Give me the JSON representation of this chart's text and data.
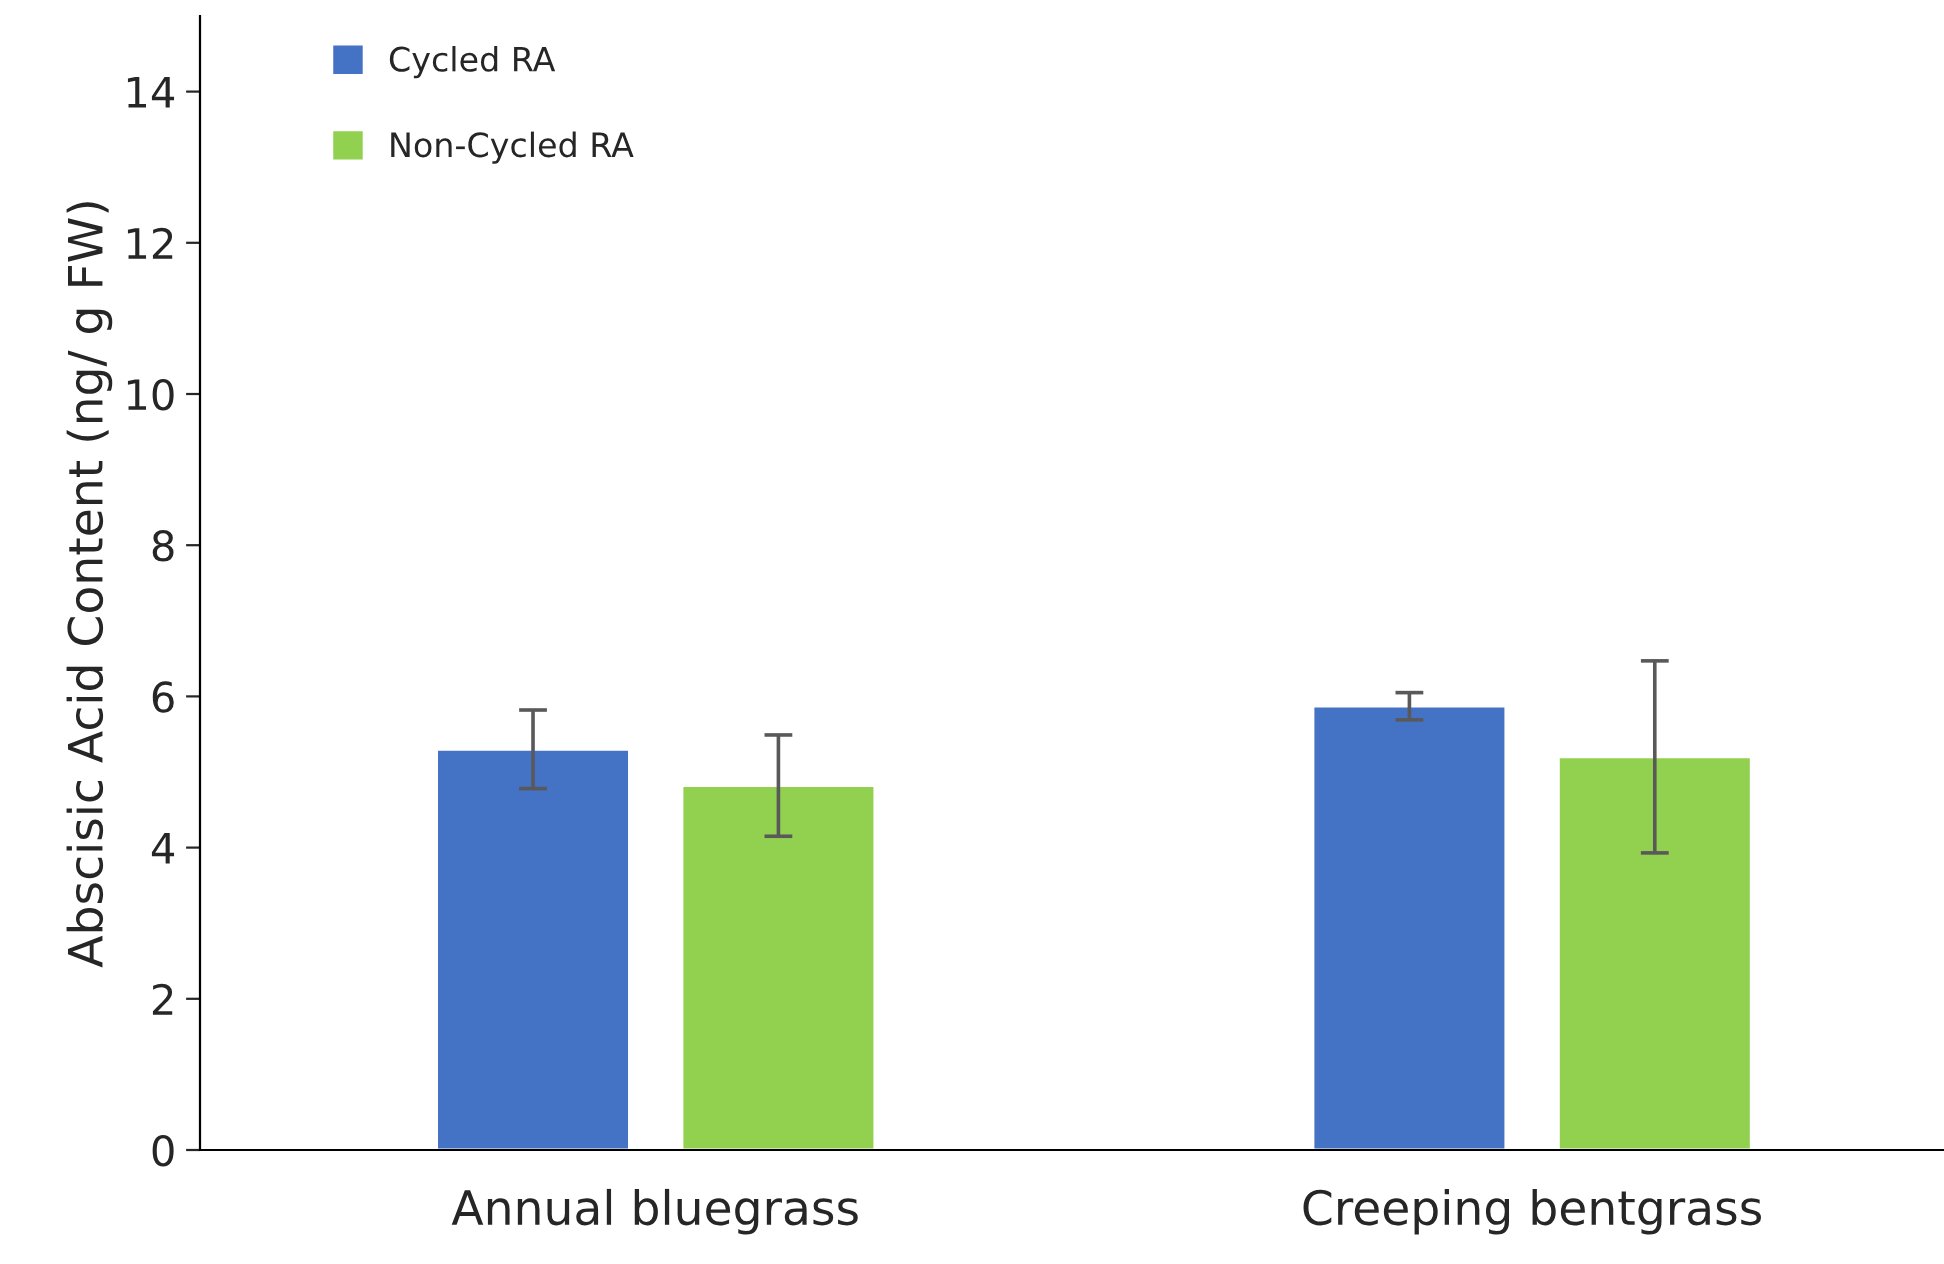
{
  "chart_data": {
    "type": "bar",
    "ylabel": "Abscisic Acid Content (ng/ g FW)",
    "categories": [
      "Annual bluegrass",
      "Creeping bentgrass"
    ],
    "series": [
      {
        "name": "Cycled RA",
        "color": "#4472c4",
        "values": [
          5.3,
          5.87
        ],
        "errors": [
          0.52,
          0.18
        ]
      },
      {
        "name": "Non-Cycled RA",
        "color": "#92d050",
        "values": [
          4.82,
          5.2
        ],
        "errors": [
          0.67,
          1.27
        ]
      }
    ],
    "ylim": [
      0,
      15
    ],
    "yticks": [
      0,
      2,
      4,
      6,
      8,
      10,
      12,
      14
    ],
    "grid": false,
    "legend": "top left"
  }
}
